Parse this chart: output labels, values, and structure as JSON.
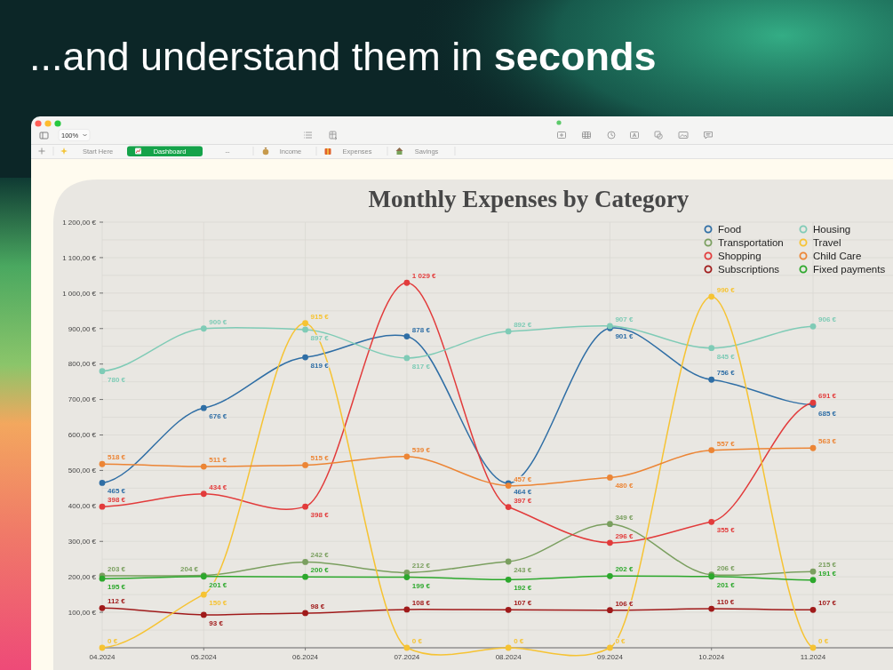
{
  "chart_data": {
    "type": "line",
    "title": "Monthly Expenses by Category",
    "annotations": [
      "...and understand them in seconds",
      "100%",
      "Start Here",
      "Dashboard",
      "--",
      "Income",
      "Expenses",
      "Savings"
    ],
    "categories": [
      "04.2024",
      "05.2024",
      "06.2024",
      "07.2024",
      "08.2024",
      "09.2024",
      "10.2024",
      "11.2024"
    ],
    "series": [
      {
        "name": "Food",
        "color": "#2f6ea5",
        "values": [
          465,
          676,
          819,
          878,
          464,
          901,
          756,
          685
        ],
        "value_labels": [
          "465 €",
          "676 €",
          "819 €",
          "878 €",
          "464 €",
          "901 €",
          "756 €",
          "685 €"
        ]
      },
      {
        "name": "Transportation",
        "color": "#7a9f5f",
        "values": [
          203,
          204,
          242,
          212,
          243,
          349,
          206,
          215
        ],
        "value_labels": [
          "203 €",
          "204 €",
          "242 €",
          "212 €",
          "243 €",
          "349 €",
          "206 €",
          "215 €"
        ]
      },
      {
        "name": "Shopping",
        "color": "#e23b3b",
        "values": [
          398,
          434,
          398,
          1029,
          397,
          296,
          355,
          691
        ],
        "value_labels": [
          "398 €",
          "434 €",
          "398 €",
          "1 029 €",
          "397 €",
          "296 €",
          "355 €",
          "691 €"
        ]
      },
      {
        "name": "Subscriptions",
        "color": "#a01a1a",
        "values": [
          112,
          93,
          98,
          108,
          107,
          106,
          110,
          107
        ],
        "value_labels": [
          "112 €",
          "93 €",
          "98 €",
          "108 €",
          "107 €",
          "106 €",
          "110 €",
          "107 €"
        ]
      },
      {
        "name": "Housing",
        "color": "#7fcbb6",
        "values": [
          780,
          900,
          897,
          817,
          892,
          907,
          845,
          906
        ],
        "value_labels": [
          "780 €",
          "900 €",
          "897 €",
          "817 €",
          "892 €",
          "907 €",
          "845 €",
          "906 €"
        ]
      },
      {
        "name": "Travel",
        "color": "#f6c333",
        "values": [
          0,
          150,
          915,
          0,
          0,
          0,
          990,
          0
        ],
        "value_labels": [
          "0 €",
          "150 €",
          "915 €",
          "0 €",
          "0 €",
          "0 €",
          "990 €",
          "0 €"
        ]
      },
      {
        "name": "Child Care",
        "color": "#ec8535",
        "values": [
          518,
          511,
          515,
          539,
          457,
          480,
          557,
          563
        ],
        "value_labels": [
          "518 €",
          "511 €",
          "515 €",
          "539 €",
          "457 €",
          "480 €",
          "557 €",
          "563 €"
        ]
      },
      {
        "name": "Fixed payments",
        "color": "#2ca82c",
        "values": [
          195,
          201,
          200,
          199,
          192,
          202,
          201,
          191
        ],
        "value_labels": [
          "195 €",
          "201 €",
          "200 €",
          "199 €",
          "192 €",
          "202 €",
          "201 €",
          "191 €"
        ]
      }
    ],
    "ylim": [
      0,
      1200
    ],
    "yticks": [
      {
        "value": 50,
        "label": null
      },
      {
        "value": 100,
        "label": "100,00 €"
      },
      {
        "value": 150,
        "label": null
      },
      {
        "value": 200,
        "label": "200,00 €"
      },
      {
        "value": 250,
        "label": null
      },
      {
        "value": 300,
        "label": "300,00 €"
      },
      {
        "value": 350,
        "label": null
      },
      {
        "value": 400,
        "label": "400,00 €"
      },
      {
        "value": 450,
        "label": null
      },
      {
        "value": 500,
        "label": "500,00 €"
      },
      {
        "value": 550,
        "label": null
      },
      {
        "value": 600,
        "label": "600,00 €"
      },
      {
        "value": 650,
        "label": null
      },
      {
        "value": 700,
        "label": "700,00 €"
      },
      {
        "value": 750,
        "label": null
      },
      {
        "value": 800,
        "label": "800,00 €"
      },
      {
        "value": 850,
        "label": null
      },
      {
        "value": 900,
        "label": "900,00 €"
      },
      {
        "value": 950,
        "label": null
      },
      {
        "value": 1000,
        "label": "1 000,00 €"
      },
      {
        "value": 1050,
        "label": null
      },
      {
        "value": 1100,
        "label": "1 100,00 €"
      },
      {
        "value": 1150,
        "label": null
      },
      {
        "value": 1200,
        "label": "1 200,00 €"
      }
    ],
    "grid": true,
    "legend": "top right",
    "marker": "circle",
    "line_style": "solid"
  }
}
